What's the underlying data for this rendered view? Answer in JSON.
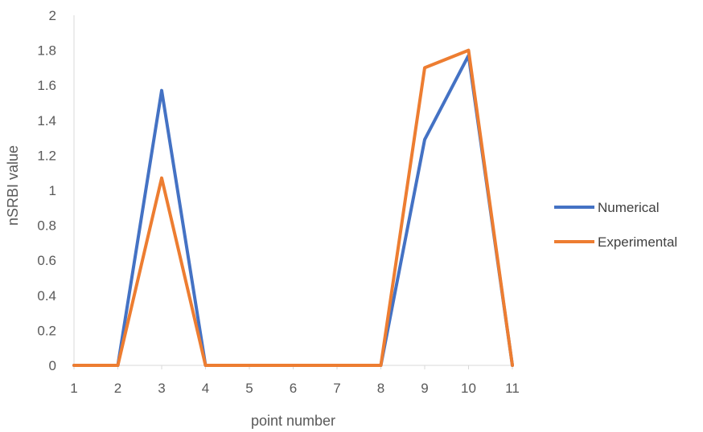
{
  "chart_data": {
    "type": "line",
    "title": "",
    "xlabel": "point number",
    "ylabel": "nSRBI value",
    "x": [
      "1",
      "2",
      "3",
      "4",
      "5",
      "6",
      "7",
      "8",
      "9",
      "10",
      "11"
    ],
    "ylim": [
      0,
      2
    ],
    "yticks": [
      "0",
      "0.2",
      "0.4",
      "0.6",
      "0.8",
      "1",
      "1.2",
      "1.4",
      "1.6",
      "1.8",
      "2"
    ],
    "grid": false,
    "legend": "right",
    "series": [
      {
        "name": "Numerical",
        "color": "#4472C4",
        "values": [
          0,
          0,
          1.57,
          0,
          0,
          0,
          0,
          0,
          1.29,
          1.77,
          0
        ]
      },
      {
        "name": "Experimental",
        "color": "#ED7D31",
        "values": [
          0,
          0,
          1.07,
          0,
          0,
          0,
          0,
          0,
          1.7,
          1.8,
          0
        ]
      }
    ]
  }
}
